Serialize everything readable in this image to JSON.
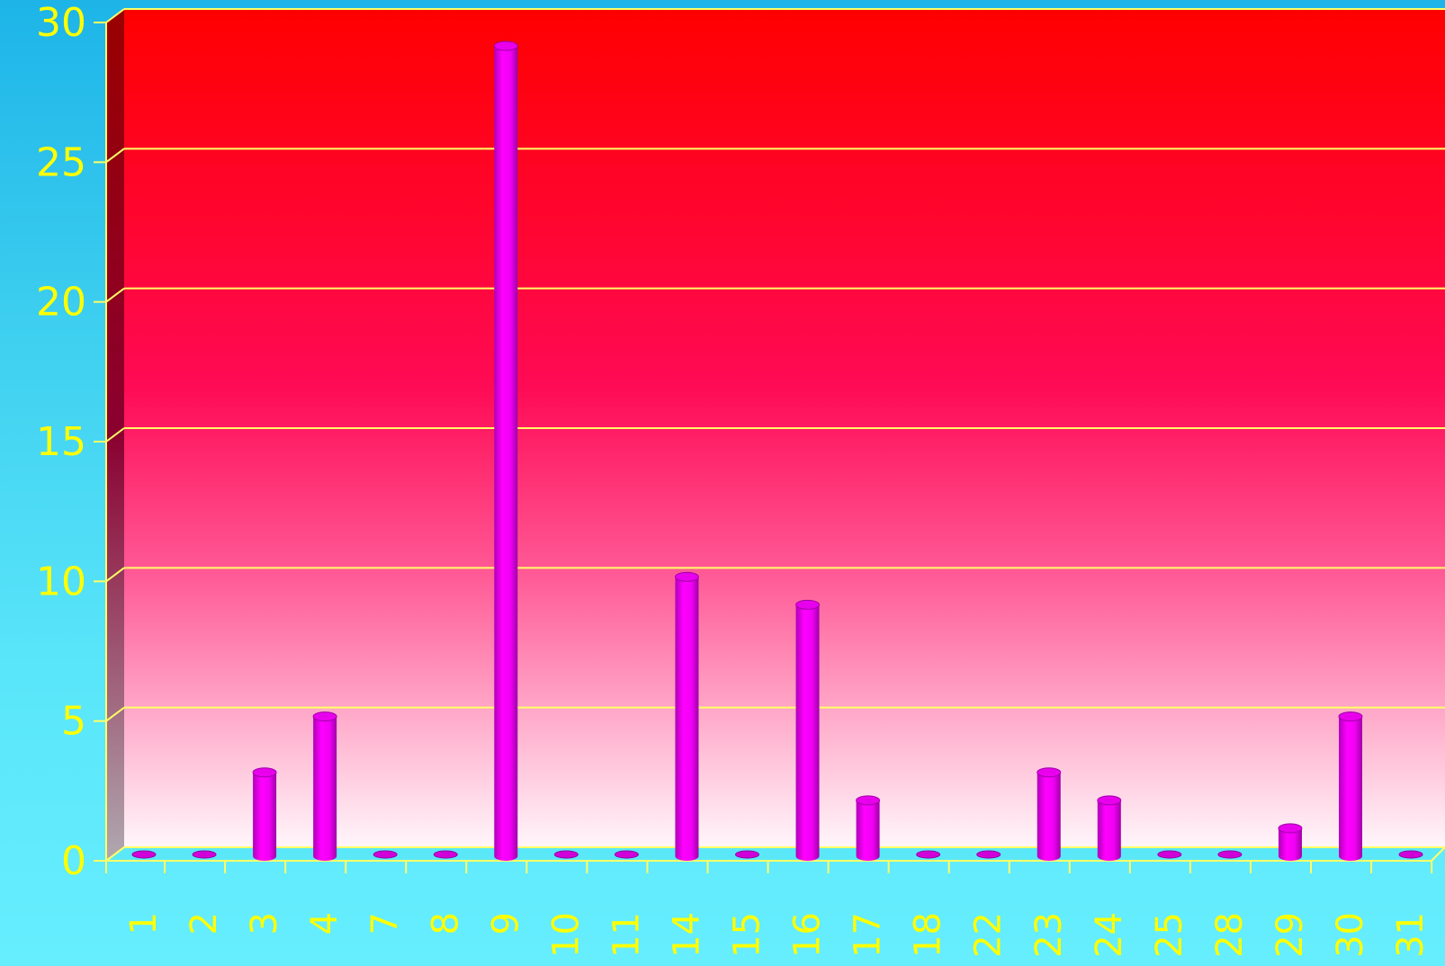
{
  "chart_data": {
    "type": "bar",
    "title": "",
    "xlabel": "",
    "ylabel": "",
    "categories": [
      "1",
      "2",
      "3",
      "4",
      "7",
      "8",
      "9",
      "10",
      "11",
      "14",
      "15",
      "16",
      "17",
      "18",
      "22",
      "23",
      "24",
      "25",
      "28",
      "29",
      "30",
      "31"
    ],
    "values": [
      0,
      0,
      3,
      5,
      0,
      0,
      29,
      0,
      0,
      10,
      0,
      9,
      2,
      0,
      0,
      3,
      2,
      0,
      0,
      1,
      5,
      0
    ],
    "ylim": [
      0,
      30
    ],
    "yticks": [
      0,
      5,
      10,
      15,
      20,
      25,
      30
    ],
    "grid": true,
    "colors": {
      "bar": "#ff00ff",
      "plot_top": "#ff0000",
      "plot_bottom": "#fff4f8",
      "grid": "#ffff66",
      "text": "#ffff00"
    }
  }
}
